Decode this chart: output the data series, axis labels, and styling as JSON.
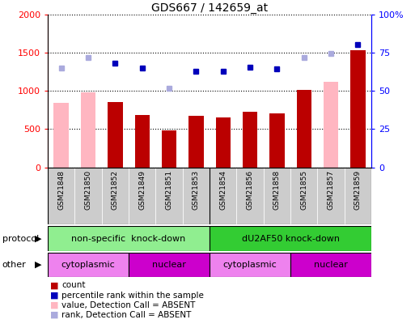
{
  "title": "GDS667 / 142659_at",
  "samples": [
    "GSM21848",
    "GSM21850",
    "GSM21852",
    "GSM21849",
    "GSM21851",
    "GSM21853",
    "GSM21854",
    "GSM21856",
    "GSM21858",
    "GSM21855",
    "GSM21857",
    "GSM21859"
  ],
  "count_values": [
    null,
    null,
    860,
    690,
    480,
    670,
    650,
    730,
    710,
    1010,
    null,
    1530
  ],
  "count_absent": [
    850,
    980,
    null,
    null,
    null,
    null,
    null,
    null,
    null,
    null,
    1120,
    null
  ],
  "rank_values": [
    null,
    null,
    1370,
    1300,
    null,
    1260,
    1260,
    1310,
    1295,
    null,
    null,
    1610
  ],
  "rank_absent": [
    1300,
    1440,
    null,
    null,
    1040,
    null,
    null,
    null,
    null,
    1440,
    1490,
    null
  ],
  "ylim_left": [
    0,
    2000
  ],
  "ylim_right": [
    0,
    100
  ],
  "yticks_left": [
    0,
    500,
    1000,
    1500,
    2000
  ],
  "yticks_right": [
    0,
    25,
    50,
    75,
    100
  ],
  "protocol_groups": [
    {
      "label": "non-specific  knock-down",
      "start": 0,
      "end": 6,
      "color": "#90EE90"
    },
    {
      "label": "dU2AF50 knock-down",
      "start": 6,
      "end": 12,
      "color": "#33CC33"
    }
  ],
  "other_groups": [
    {
      "label": "cytoplasmic",
      "start": 0,
      "end": 3,
      "color": "#EE82EE"
    },
    {
      "label": "nuclear",
      "start": 3,
      "end": 6,
      "color": "#CC00CC"
    },
    {
      "label": "cytoplasmic",
      "start": 6,
      "end": 9,
      "color": "#EE82EE"
    },
    {
      "label": "nuclear",
      "start": 9,
      "end": 12,
      "color": "#CC00CC"
    }
  ],
  "legend_items": [
    {
      "label": "count",
      "color": "#BB0000"
    },
    {
      "label": "percentile rank within the sample",
      "color": "#0000BB"
    },
    {
      "label": "value, Detection Call = ABSENT",
      "color": "#FFB6C1"
    },
    {
      "label": "rank, Detection Call = ABSENT",
      "color": "#AAAADD"
    }
  ],
  "bar_color": "#BB0000",
  "bar_absent_color": "#FFB6C1",
  "rank_color": "#0000BB",
  "rank_absent_color": "#AAAADD",
  "background_color": "#FFFFFF",
  "cell_bg": "#CCCCCC"
}
